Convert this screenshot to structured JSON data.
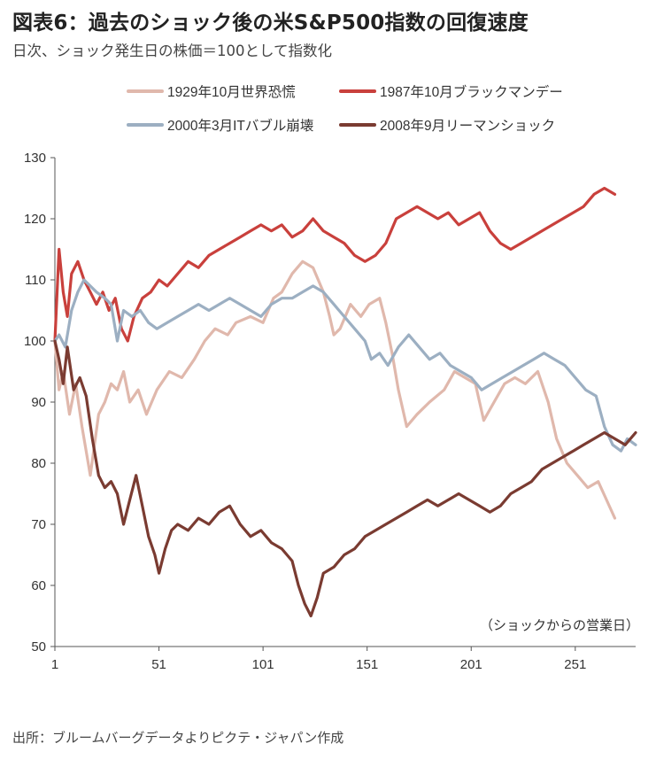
{
  "header": {
    "title": "図表6：過去のショック後の米S&P500指数の回復速度",
    "subtitle": "日次、ショック発生日の株価＝100として指数化"
  },
  "footer": {
    "source": "出所：ブルームバーグデータよりピクテ・ジャパン作成"
  },
  "colors": {
    "s1929": "#e0b8ac",
    "s1987": "#c9403c",
    "s2000": "#9cafc2",
    "s2008": "#7a3b31"
  },
  "chart_data": {
    "type": "line",
    "title": "",
    "xlabel": "（ショックからの営業日）",
    "ylabel": "",
    "xlim": [
      1,
      280
    ],
    "ylim": [
      50,
      130
    ],
    "x_ticks": [
      1,
      51,
      101,
      151,
      201,
      251
    ],
    "y_ticks": [
      50,
      60,
      70,
      80,
      90,
      100,
      110,
      120,
      130
    ],
    "grid": false,
    "legend_position": "top",
    "series": [
      {
        "name": "1929年10月世界恐慌",
        "color": "#e0b8ac",
        "x": [
          1,
          3,
          5,
          8,
          11,
          14,
          18,
          22,
          25,
          28,
          31,
          34,
          37,
          41,
          45,
          50,
          56,
          62,
          68,
          73,
          78,
          84,
          88,
          95,
          101,
          106,
          110,
          115,
          120,
          125,
          130,
          133,
          135,
          138,
          143,
          148,
          152,
          157,
          160,
          163,
          166,
          170,
          175,
          181,
          188,
          193,
          198,
          203,
          207,
          212,
          217,
          222,
          227,
          233,
          238,
          242,
          247,
          252,
          257,
          262,
          266,
          270
        ],
        "values": [
          100,
          92,
          95,
          88,
          93,
          86,
          78,
          88,
          90,
          93,
          92,
          95,
          90,
          92,
          88,
          92,
          95,
          94,
          97,
          100,
          102,
          101,
          103,
          104,
          103,
          107,
          108,
          111,
          113,
          112,
          108,
          104,
          101,
          102,
          106,
          104,
          106,
          107,
          103,
          98,
          92,
          86,
          88,
          90,
          92,
          95,
          94,
          93,
          87,
          90,
          93,
          94,
          93,
          95,
          90,
          84,
          80,
          78,
          76,
          77,
          74,
          71
        ]
      },
      {
        "name": "1987年10月ブラックマンデー",
        "color": "#c9403c",
        "x": [
          1,
          3,
          5,
          7,
          9,
          12,
          15,
          18,
          21,
          24,
          27,
          30,
          33,
          36,
          39,
          43,
          47,
          51,
          55,
          60,
          65,
          70,
          75,
          80,
          85,
          90,
          95,
          100,
          105,
          110,
          115,
          120,
          125,
          130,
          135,
          140,
          145,
          150,
          155,
          160,
          165,
          170,
          175,
          180,
          185,
          190,
          195,
          200,
          205,
          210,
          215,
          220,
          225,
          230,
          235,
          240,
          245,
          250,
          255,
          260,
          265,
          270
        ],
        "values": [
          100,
          115,
          108,
          104,
          111,
          113,
          110,
          108,
          106,
          108,
          105,
          107,
          102,
          100,
          104,
          107,
          108,
          110,
          109,
          111,
          113,
          112,
          114,
          115,
          116,
          117,
          118,
          119,
          118,
          119,
          117,
          118,
          120,
          118,
          117,
          116,
          114,
          113,
          114,
          116,
          120,
          121,
          122,
          121,
          120,
          121,
          119,
          120,
          121,
          118,
          116,
          115,
          116,
          117,
          118,
          119,
          120,
          121,
          122,
          124,
          125,
          124
        ]
      },
      {
        "name": "2000年3月ITバブル崩壊",
        "color": "#9cafc2",
        "x": [
          1,
          3,
          6,
          9,
          12,
          15,
          18,
          21,
          25,
          28,
          31,
          34,
          38,
          42,
          46,
          50,
          55,
          60,
          65,
          70,
          75,
          80,
          85,
          90,
          95,
          100,
          105,
          110,
          115,
          120,
          125,
          130,
          135,
          140,
          145,
          150,
          153,
          157,
          161,
          166,
          171,
          176,
          181,
          186,
          191,
          196,
          201,
          206,
          211,
          216,
          221,
          226,
          231,
          236,
          241,
          246,
          251,
          256,
          261,
          265,
          269,
          273,
          276,
          280
        ],
        "values": [
          100,
          101,
          99,
          105,
          108,
          110,
          109,
          108,
          107,
          106,
          100,
          105,
          104,
          105,
          103,
          102,
          103,
          104,
          105,
          106,
          105,
          106,
          107,
          106,
          105,
          104,
          106,
          107,
          107,
          108,
          109,
          108,
          106,
          104,
          102,
          100,
          97,
          98,
          96,
          99,
          101,
          99,
          97,
          98,
          96,
          95,
          94,
          92,
          93,
          94,
          95,
          96,
          97,
          98,
          97,
          96,
          94,
          92,
          91,
          86,
          83,
          82,
          84,
          83
        ]
      },
      {
        "name": "2008年9月リーマンショック",
        "color": "#7a3b31",
        "x": [
          1,
          3,
          5,
          7,
          10,
          13,
          16,
          19,
          22,
          25,
          28,
          31,
          34,
          37,
          40,
          43,
          46,
          49,
          51,
          54,
          57,
          60,
          65,
          70,
          75,
          80,
          85,
          90,
          95,
          100,
          105,
          110,
          115,
          118,
          121,
          124,
          127,
          130,
          135,
          140,
          145,
          150,
          155,
          160,
          165,
          170,
          175,
          180,
          185,
          190,
          195,
          200,
          205,
          210,
          215,
          220,
          225,
          230,
          235,
          240,
          245,
          250,
          255,
          260,
          265,
          270,
          275,
          280
        ],
        "values": [
          100,
          97,
          93,
          99,
          92,
          94,
          91,
          84,
          78,
          76,
          77,
          75,
          70,
          74,
          78,
          73,
          68,
          65,
          62,
          66,
          69,
          70,
          69,
          71,
          70,
          72,
          73,
          70,
          68,
          69,
          67,
          66,
          64,
          60,
          57,
          55,
          58,
          62,
          63,
          65,
          66,
          68,
          69,
          70,
          71,
          72,
          73,
          74,
          73,
          74,
          75,
          74,
          73,
          72,
          73,
          75,
          76,
          77,
          79,
          80,
          81,
          82,
          83,
          84,
          85,
          84,
          83,
          85
        ]
      }
    ]
  }
}
